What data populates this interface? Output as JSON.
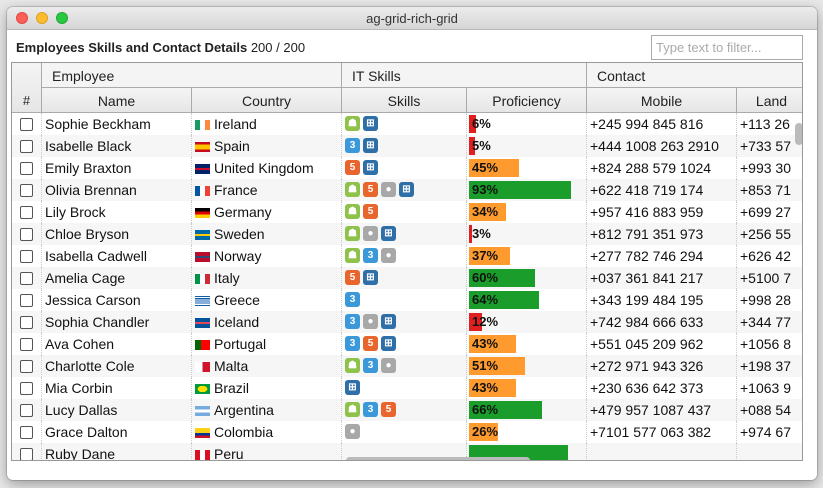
{
  "window": {
    "title": "ag-grid-rich-grid"
  },
  "header": {
    "title": "Employees Skills and Contact Details",
    "count": "200 / 200"
  },
  "filter": {
    "placeholder": "Type text to filter...",
    "value": ""
  },
  "groups": {
    "employee": "Employee",
    "it_skills": "IT Skills",
    "contact": "Contact"
  },
  "columns": {
    "hash": "#",
    "name": "Name",
    "country": "Country",
    "skills": "Skills",
    "proficiency": "Proficiency",
    "mobile": "Mobile",
    "landline": "Land"
  },
  "colors": {
    "low": "#e02020",
    "mid": "#ff9a2e",
    "high": "#1a9d2a"
  },
  "rows": [
    {
      "name": "Sophie Beckham",
      "country": "Ireland",
      "flag": "ireland",
      "skills": [
        "android",
        "windows"
      ],
      "proficiency": 6,
      "pct": "6%",
      "mobile": "+245 994 845 816",
      "landline": "+113 26"
    },
    {
      "name": "Isabelle Black",
      "country": "Spain",
      "flag": "spain",
      "skills": [
        "css",
        "windows"
      ],
      "proficiency": 5,
      "pct": "5%",
      "mobile": "+444 1008 263 2910",
      "landline": "+733 57"
    },
    {
      "name": "Emily Braxton",
      "country": "United Kingdom",
      "flag": "uk",
      "skills": [
        "html5",
        "windows"
      ],
      "proficiency": 45,
      "pct": "45%",
      "mobile": "+824 288 579 1024",
      "landline": "+993 30"
    },
    {
      "name": "Olivia Brennan",
      "country": "France",
      "flag": "france",
      "skills": [
        "android",
        "html5",
        "mac",
        "windows"
      ],
      "proficiency": 93,
      "pct": "93%",
      "mobile": "+622 418 719 174",
      "landline": "+853 71"
    },
    {
      "name": "Lily Brock",
      "country": "Germany",
      "flag": "germany",
      "skills": [
        "android",
        "html5"
      ],
      "proficiency": 34,
      "pct": "34%",
      "mobile": "+957 416 883 959",
      "landline": "+699 27"
    },
    {
      "name": "Chloe Bryson",
      "country": "Sweden",
      "flag": "sweden",
      "skills": [
        "android",
        "mac",
        "windows"
      ],
      "proficiency": 3,
      "pct": "3%",
      "mobile": "+812 791 351 973",
      "landline": "+256 55"
    },
    {
      "name": "Isabella Cadwell",
      "country": "Norway",
      "flag": "norway",
      "skills": [
        "android",
        "css",
        "mac"
      ],
      "proficiency": 37,
      "pct": "37%",
      "mobile": "+277 782 746 294",
      "landline": "+626 42"
    },
    {
      "name": "Amelia Cage",
      "country": "Italy",
      "flag": "italy",
      "skills": [
        "html5",
        "windows"
      ],
      "proficiency": 60,
      "pct": "60%",
      "mobile": "+037 361 841 217",
      "landline": "+5100 7"
    },
    {
      "name": "Jessica Carson",
      "country": "Greece",
      "flag": "greece",
      "skills": [
        "css"
      ],
      "proficiency": 64,
      "pct": "64%",
      "mobile": "+343 199 484 195",
      "landline": "+998 28"
    },
    {
      "name": "Sophia Chandler",
      "country": "Iceland",
      "flag": "iceland",
      "skills": [
        "css",
        "mac",
        "windows"
      ],
      "proficiency": 12,
      "pct": "12%",
      "mobile": "+742 984 666 633",
      "landline": "+344 77"
    },
    {
      "name": "Ava Cohen",
      "country": "Portugal",
      "flag": "portugal",
      "skills": [
        "css",
        "html5",
        "windows"
      ],
      "proficiency": 43,
      "pct": "43%",
      "mobile": "+551 045 209 962",
      "landline": "+1056 8"
    },
    {
      "name": "Charlotte Cole",
      "country": "Malta",
      "flag": "malta",
      "skills": [
        "android",
        "css",
        "mac"
      ],
      "proficiency": 51,
      "pct": "51%",
      "mobile": "+272 971 943 326",
      "landline": "+198 37"
    },
    {
      "name": "Mia Corbin",
      "country": "Brazil",
      "flag": "brazil",
      "skills": [
        "windows"
      ],
      "proficiency": 43,
      "pct": "43%",
      "mobile": "+230 636 642 373",
      "landline": "+1063 9"
    },
    {
      "name": "Lucy Dallas",
      "country": "Argentina",
      "flag": "argentina",
      "skills": [
        "android",
        "css",
        "html5"
      ],
      "proficiency": 66,
      "pct": "66%",
      "mobile": "+479 957 1087 437",
      "landline": "+088 54"
    },
    {
      "name": "Grace Dalton",
      "country": "Colombia",
      "flag": "colombia",
      "skills": [
        "mac"
      ],
      "proficiency": 26,
      "pct": "26%",
      "mobile": "+7101 577 063 382",
      "landline": "+974 67"
    },
    {
      "name": "Ruby Dane",
      "country": "Peru",
      "flag": "peru",
      "skills": [],
      "proficiency": 90,
      "pct": "",
      "mobile": "",
      "landline": ""
    }
  ]
}
